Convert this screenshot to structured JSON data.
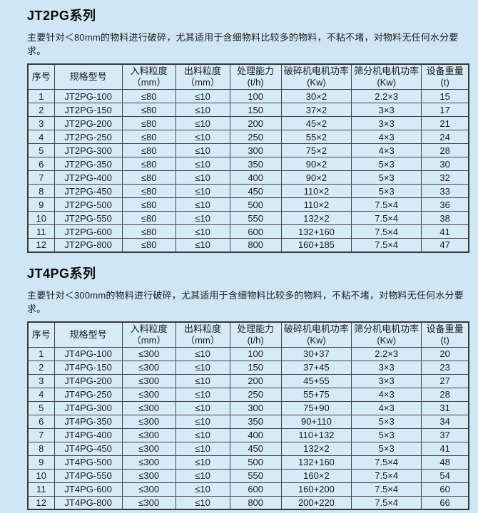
{
  "colors": {
    "background": "#cfe6f4",
    "cell_background": "#d6ebf8",
    "border": "#454545",
    "text": "#1b1b1b"
  },
  "sections": [
    {
      "title": "JT2PG系列",
      "description": "主要针对＜80mm的物料进行破碎，尤其适用于含细物料比较多的物料，不粘不堵，对物料无任何水分要求。",
      "table": {
        "columns": [
          {
            "label": "序号",
            "unit": ""
          },
          {
            "label": "规格型号",
            "unit": ""
          },
          {
            "label": "入料粒度",
            "unit": "（mm）"
          },
          {
            "label": "出料粒度",
            "unit": "（mm）"
          },
          {
            "label": "处理能力",
            "unit": "(t/h)"
          },
          {
            "label": "破碎机电机功率",
            "unit": "(Kw)"
          },
          {
            "label": "筛分机电机功率",
            "unit": "(Kw)"
          },
          {
            "label": "设备重量",
            "unit": "(t)"
          }
        ],
        "rows": [
          [
            "1",
            "JT2PG-100",
            "≤80",
            "≤10",
            "100",
            "30×2",
            "2.2×3",
            "15"
          ],
          [
            "2",
            "JT2PG-150",
            "≤80",
            "≤10",
            "150",
            "37×2",
            "3×3",
            "17"
          ],
          [
            "3",
            "JT2PG-200",
            "≤80",
            "≤10",
            "200",
            "45×2",
            "3×3",
            "21"
          ],
          [
            "4",
            "JT2PG-250",
            "≤80",
            "≤10",
            "250",
            "55×2",
            "4×3",
            "24"
          ],
          [
            "5",
            "JT2PG-300",
            "≤80",
            "≤10",
            "300",
            "75×2",
            "4×3",
            "28"
          ],
          [
            "6",
            "JT2PG-350",
            "≤80",
            "≤10",
            "350",
            "90×2",
            "5×3",
            "30"
          ],
          [
            "7",
            "JT2PG-400",
            "≤80",
            "≤10",
            "400",
            "90×2",
            "5×3",
            "32"
          ],
          [
            "8",
            "JT2PG-450",
            "≤80",
            "≤10",
            "450",
            "110×2",
            "5×3",
            "33"
          ],
          [
            "9",
            "JT2PG-500",
            "≤80",
            "≤10",
            "500",
            "110×2",
            "7.5×4",
            "36"
          ],
          [
            "10",
            "JT2PG-550",
            "≤80",
            "≤10",
            "550",
            "132×2",
            "7.5×4",
            "38"
          ],
          [
            "11",
            "JT2PG-600",
            "≤80",
            "≤10",
            "600",
            "132+160",
            "7.5×4",
            "41"
          ],
          [
            "12",
            "JT2PG-800",
            "≤80",
            "≤10",
            "800",
            "160+185",
            "7.5×4",
            "47"
          ]
        ]
      }
    },
    {
      "title": "JT4PG系列",
      "description": "主要针对＜300mm的物料进行破碎，尤其适用于含细物料比较多的物料，不粘不堵，对物料无任何水分要求。",
      "table": {
        "columns": [
          {
            "label": "序号",
            "unit": ""
          },
          {
            "label": "规格型号",
            "unit": ""
          },
          {
            "label": "入料粒度",
            "unit": "（mm）"
          },
          {
            "label": "出料粒度",
            "unit": "（mm）"
          },
          {
            "label": "处理能力",
            "unit": "(t/h)"
          },
          {
            "label": "破碎机电机功率",
            "unit": "(Kw)"
          },
          {
            "label": "筛分机电机功率",
            "unit": "(Kw)"
          },
          {
            "label": "设备重量",
            "unit": "(t)"
          }
        ],
        "rows": [
          [
            "1",
            "JT4PG-100",
            "≤300",
            "≤10",
            "100",
            "30+37",
            "2.2×3",
            "20"
          ],
          [
            "2",
            "JT4PG-150",
            "≤300",
            "≤10",
            "150",
            "37+45",
            "3×3",
            "23"
          ],
          [
            "3",
            "JT4PG-200",
            "≤300",
            "≤10",
            "200",
            "45+55",
            "3×3",
            "27"
          ],
          [
            "4",
            "JT4PG-250",
            "≤300",
            "≤10",
            "250",
            "55+75",
            "4×3",
            "28"
          ],
          [
            "5",
            "JT4PG-300",
            "≤300",
            "≤10",
            "300",
            "75+90",
            "4×3",
            "31"
          ],
          [
            "6",
            "JT4PG-350",
            "≤300",
            "≤10",
            "350",
            "90+110",
            "5×3",
            "34"
          ],
          [
            "7",
            "JT4PG-400",
            "≤300",
            "≤10",
            "400",
            "110+132",
            "5×3",
            "37"
          ],
          [
            "8",
            "JT4PG-450",
            "≤300",
            "≤10",
            "450",
            "132×2",
            "5×3",
            "41"
          ],
          [
            "9",
            "JT4PG-500",
            "≤300",
            "≤10",
            "500",
            "132+160",
            "7.5×4",
            "48"
          ],
          [
            "10",
            "JT4PG-550",
            "≤300",
            "≤10",
            "550",
            "160×2",
            "7.5×4",
            "54"
          ],
          [
            "11",
            "JT4PG-600",
            "≤300",
            "≤10",
            "600",
            "160+200",
            "7.5×4",
            "60"
          ],
          [
            "12",
            "JT4PG-800",
            "≤300",
            "≤10",
            "800",
            "200+220",
            "7.5×4",
            "66"
          ]
        ]
      }
    }
  ]
}
